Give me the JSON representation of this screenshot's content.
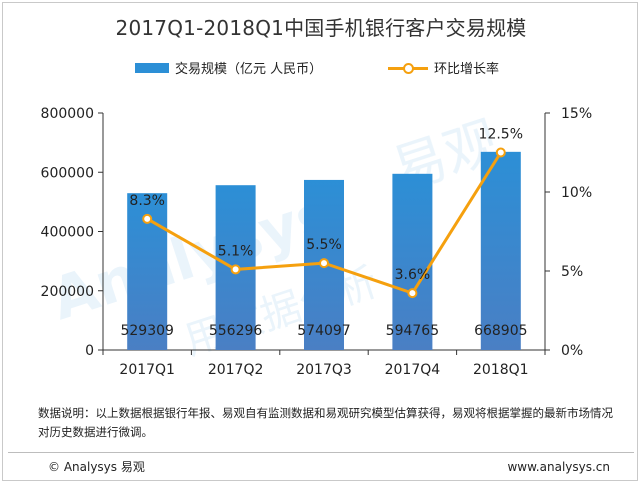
{
  "title": "2017Q1-2018Q1中国手机银行客户交易规模",
  "legend": {
    "bar_label": "交易规模（亿元  人民币）",
    "line_label": "环比增长率"
  },
  "chart_data": {
    "type": "bar",
    "categories": [
      "2017Q1",
      "2017Q2",
      "2017Q3",
      "2017Q4",
      "2018Q1"
    ],
    "series": [
      {
        "name": "交易规模（亿元  人民币）",
        "type": "bar",
        "axis": "left",
        "values": [
          529309,
          556296,
          574097,
          594765,
          668905
        ],
        "color": "#2c8fd6"
      },
      {
        "name": "环比增长率",
        "type": "line",
        "axis": "right",
        "values": [
          8.3,
          5.1,
          5.5,
          3.6,
          12.5
        ],
        "color": "#f5a00e"
      }
    ],
    "bar_labels": [
      "529309",
      "556296",
      "574097",
      "594765",
      "668905"
    ],
    "line_labels": [
      "8.3%",
      "5.1%",
      "5.5%",
      "3.6%",
      "12.5%"
    ],
    "ylim_left": [
      0,
      800000
    ],
    "yticks_left": [
      "0",
      "200000",
      "400000",
      "600000",
      "800000"
    ],
    "ylim_right": [
      0,
      15
    ],
    "yticks_right": [
      "0%",
      "5%",
      "10%",
      "15%"
    ],
    "grid": false
  },
  "watermark": {
    "brand": "Analysys",
    "brand_cn": "易观",
    "slogan": "用数据分析"
  },
  "note": "数据说明：以上数据根据银行年报、易观自有监测数据和易观研究模型估算获得，易观将根据掌握的最新市场情况对历史数据进行微调。",
  "footer": {
    "copyright": "© Analysys 易观",
    "url": "www.analysys.cn"
  }
}
